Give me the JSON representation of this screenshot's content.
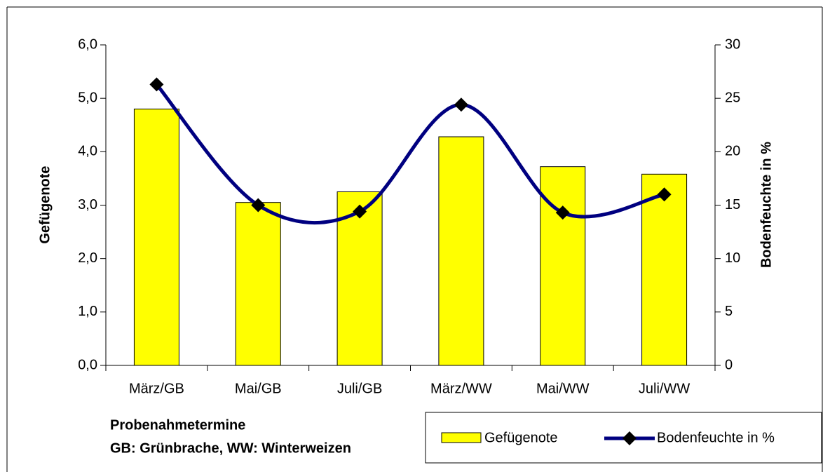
{
  "chart_data": {
    "type": "bar",
    "categories": [
      "März/GB",
      "Mai/GB",
      "Juli/GB",
      "März/WW",
      "Mai/WW",
      "Juli/WW"
    ],
    "series": [
      {
        "name": "Gefügenote",
        "color": "#ffff00",
        "values": [
          4.8,
          3.05,
          3.25,
          4.28,
          3.72,
          3.58
        ]
      },
      {
        "name": "Bodenfeuchte in %",
        "color": "#000080",
        "type": "line",
        "axis": "y2",
        "marker_color": "#000000",
        "values": [
          26.3,
          15.0,
          14.4,
          24.4,
          14.3,
          16.0
        ]
      }
    ],
    "ylabel": "Gefügenote",
    "y2label": "Bodenfeuchte in %",
    "xlabel": "Probenahmetermine",
    "annotation": "GB: Grünbrache, WW: Winterweizen",
    "ylim": [
      0,
      6
    ],
    "yticks": [
      {
        "value": 0,
        "label": "0,0"
      },
      {
        "value": 1,
        "label": "1,0"
      },
      {
        "value": 2,
        "label": "2,0"
      },
      {
        "value": 3,
        "label": "3,0"
      },
      {
        "value": 4,
        "label": "4,0"
      },
      {
        "value": 5,
        "label": "5,0"
      },
      {
        "value": 6,
        "label": "6,0"
      }
    ],
    "y2lim": [
      0,
      30
    ],
    "y2ticks": [
      0,
      5,
      10,
      15,
      20,
      25,
      30
    ],
    "legend": "bottom-right"
  }
}
